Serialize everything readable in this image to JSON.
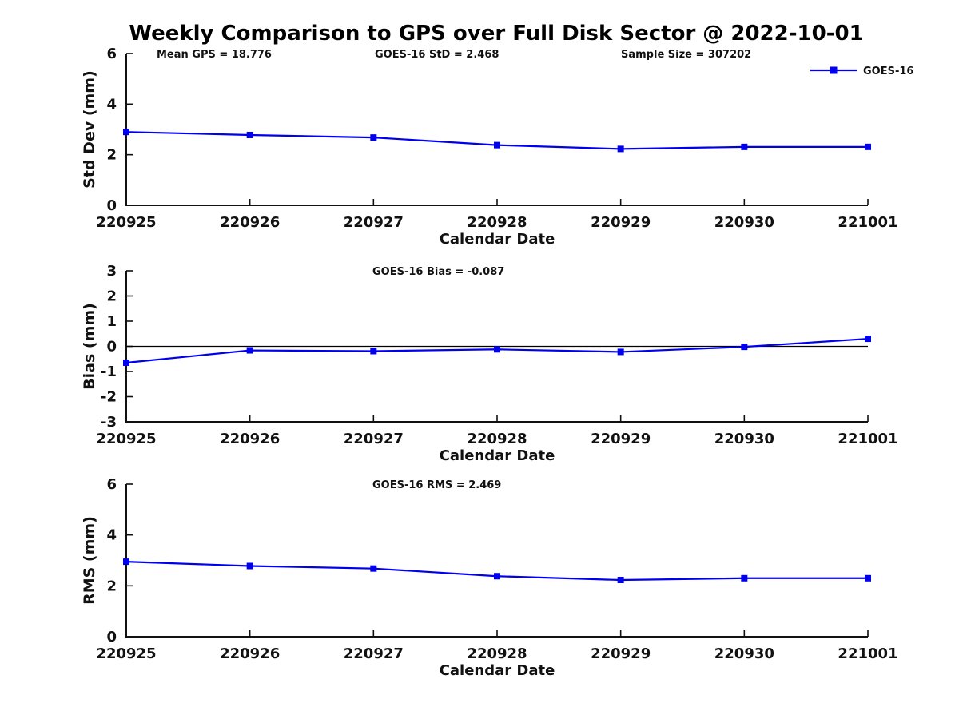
{
  "page": {
    "title": "Weekly Comparison to GPS over Full Disk Sector @ 2022-10-01"
  },
  "colors": {
    "series": "#0000ee",
    "axis": "#111111",
    "zero_line": "#000000",
    "background": "#ffffff"
  },
  "legend": {
    "label": "GOES-16",
    "position": "top-right"
  },
  "chart_data": [
    {
      "type": "line",
      "name": "std-dev",
      "categories": [
        "220925",
        "220926",
        "220927",
        "220928",
        "220929",
        "220930",
        "221001"
      ],
      "series": [
        {
          "name": "GOES-16",
          "values": [
            2.9,
            2.78,
            2.68,
            2.38,
            2.23,
            2.31,
            2.31
          ]
        }
      ],
      "ylabel": "Std Dev (mm)",
      "xlabel": "Calendar Date",
      "ylim": [
        0,
        6
      ],
      "yticks": [
        0,
        2,
        4,
        6
      ],
      "grid": false,
      "zero_line": false,
      "annotations": [
        "Mean GPS = 18.776",
        "GOES-16 StD = 2.468",
        "Sample Size = 307202"
      ],
      "legend_entries": [
        "GOES-16"
      ]
    },
    {
      "type": "line",
      "name": "bias",
      "categories": [
        "220925",
        "220926",
        "220927",
        "220928",
        "220929",
        "220930",
        "221001"
      ],
      "series": [
        {
          "name": "GOES-16",
          "values": [
            -0.65,
            -0.16,
            -0.19,
            -0.12,
            -0.22,
            -0.02,
            0.3
          ]
        }
      ],
      "ylabel": "Bias (mm)",
      "xlabel": "Calendar Date",
      "ylim": [
        -3,
        3
      ],
      "yticks": [
        -3,
        -2,
        -1,
        0,
        1,
        2,
        3
      ],
      "grid": false,
      "zero_line": true,
      "annotations": [
        "GOES-16 Bias  = -0.087"
      ],
      "legend_entries": []
    },
    {
      "type": "line",
      "name": "rms",
      "categories": [
        "220925",
        "220926",
        "220927",
        "220928",
        "220929",
        "220930",
        "221001"
      ],
      "series": [
        {
          "name": "GOES-16",
          "values": [
            2.95,
            2.78,
            2.68,
            2.38,
            2.23,
            2.3,
            2.3
          ]
        }
      ],
      "ylabel": "RMS (mm)",
      "xlabel": "Calendar Date",
      "ylim": [
        0,
        6
      ],
      "yticks": [
        0,
        2,
        4,
        6
      ],
      "grid": false,
      "zero_line": false,
      "annotations": [
        "GOES-16 RMS = 2.469"
      ],
      "legend_entries": []
    }
  ]
}
